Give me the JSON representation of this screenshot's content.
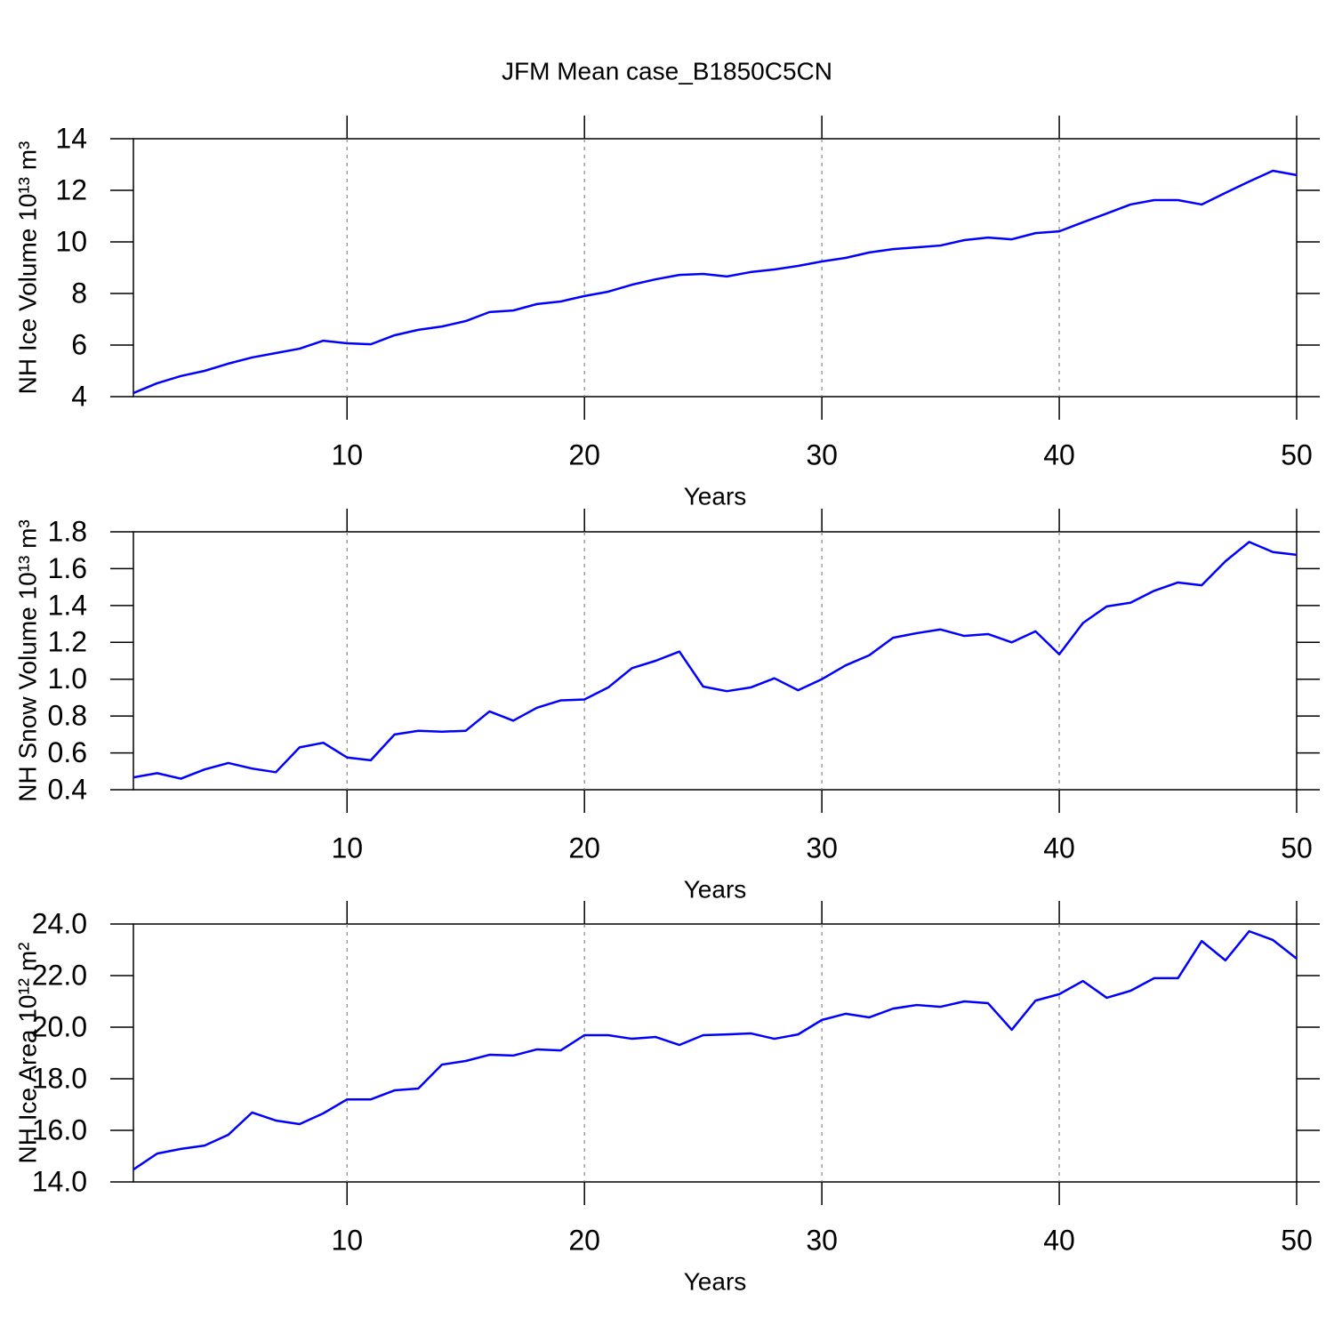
{
  "title": "JFM Mean case_B1850C5CN",
  "chart_data": [
    {
      "type": "line",
      "xlabel": "Years",
      "ylabel": "NH Ice Volume 10¹³ m³",
      "color": "#0000ff",
      "xgrid": true,
      "x": [
        1,
        2,
        3,
        4,
        5,
        6,
        7,
        8,
        9,
        10,
        11,
        12,
        13,
        14,
        15,
        16,
        17,
        18,
        19,
        20,
        21,
        22,
        23,
        24,
        25,
        26,
        27,
        28,
        29,
        30,
        31,
        32,
        33,
        34,
        35,
        36,
        37,
        38,
        39,
        40,
        41,
        42,
        43,
        44,
        45,
        46,
        47,
        48,
        49,
        50
      ],
      "values": [
        4.14,
        4.52,
        4.8,
        5.0,
        5.28,
        5.52,
        5.69,
        5.86,
        6.17,
        6.07,
        6.03,
        6.38,
        6.59,
        6.72,
        6.93,
        7.28,
        7.34,
        7.59,
        7.69,
        7.9,
        8.07,
        8.34,
        8.55,
        8.72,
        8.76,
        8.66,
        8.83,
        8.93,
        9.07,
        9.24,
        9.38,
        9.59,
        9.72,
        9.79,
        9.86,
        10.07,
        10.17,
        10.1,
        10.34,
        10.41,
        10.76,
        11.1,
        11.45,
        11.62,
        11.62,
        11.45,
        11.9,
        12.34,
        12.76,
        12.59
      ],
      "xlim": [
        1,
        50
      ],
      "xticks": [
        10,
        20,
        30,
        40,
        50
      ],
      "ylim": [
        4,
        14
      ],
      "yticks": [
        4,
        6,
        8,
        10,
        12,
        14
      ]
    },
    {
      "type": "line",
      "xlabel": "Years",
      "ylabel": "NH Snow Volume 10¹³ m³",
      "color": "#0000ff",
      "xgrid": true,
      "x": [
        1,
        2,
        3,
        4,
        5,
        6,
        7,
        8,
        9,
        10,
        11,
        12,
        13,
        14,
        15,
        16,
        17,
        18,
        19,
        20,
        21,
        22,
        23,
        24,
        25,
        26,
        27,
        28,
        29,
        30,
        31,
        32,
        33,
        34,
        35,
        36,
        37,
        38,
        39,
        40,
        41,
        42,
        43,
        44,
        45,
        46,
        47,
        48,
        49,
        50
      ],
      "values": [
        0.467,
        0.49,
        0.46,
        0.51,
        0.545,
        0.515,
        0.495,
        0.63,
        0.655,
        0.575,
        0.56,
        0.7,
        0.72,
        0.715,
        0.72,
        0.825,
        0.775,
        0.845,
        0.885,
        0.89,
        0.955,
        1.06,
        1.1,
        1.15,
        0.96,
        0.935,
        0.955,
        1.005,
        0.94,
        1.0,
        1.075,
        1.13,
        1.225,
        1.25,
        1.27,
        1.235,
        1.245,
        1.2,
        1.26,
        1.135,
        1.305,
        1.395,
        1.415,
        1.48,
        1.525,
        1.51,
        1.64,
        1.745,
        1.69,
        1.675
      ],
      "xlim": [
        1,
        50
      ],
      "xticks": [
        10,
        20,
        30,
        40,
        50
      ],
      "ylim": [
        0.4,
        1.8
      ],
      "yticks": [
        0.4,
        0.6,
        0.8,
        {
          "value": 1,
          "label": "1.0"
        },
        1.2,
        1.4,
        1.6,
        1.8
      ]
    },
    {
      "type": "line",
      "xlabel": "Years",
      "ylabel": "NH Ice Area 10¹² m²",
      "color": "#0000ff",
      "xgrid": true,
      "x": [
        1,
        2,
        3,
        4,
        5,
        6,
        7,
        8,
        9,
        10,
        11,
        12,
        13,
        14,
        15,
        16,
        17,
        18,
        19,
        20,
        21,
        22,
        23,
        24,
        25,
        26,
        27,
        28,
        29,
        30,
        31,
        32,
        33,
        34,
        35,
        36,
        37,
        38,
        39,
        40,
        41,
        42,
        43,
        44,
        45,
        46,
        47,
        48,
        49,
        50
      ],
      "values": [
        14.48,
        15.1,
        15.28,
        15.41,
        15.83,
        16.69,
        16.38,
        16.24,
        16.66,
        17.2,
        17.2,
        17.55,
        17.62,
        18.55,
        18.69,
        18.93,
        18.9,
        19.14,
        19.1,
        19.69,
        19.69,
        19.55,
        19.62,
        19.31,
        19.69,
        19.72,
        19.76,
        19.55,
        19.72,
        20.28,
        20.52,
        20.38,
        20.72,
        20.86,
        20.79,
        21.0,
        20.93,
        19.9,
        21.03,
        21.28,
        21.79,
        21.14,
        21.41,
        21.9,
        21.9,
        23.34,
        22.59,
        23.72,
        23.38,
        22.66
      ],
      "xlim": [
        1,
        50
      ],
      "xticks": [
        10,
        20,
        30,
        40,
        50
      ],
      "ylim": [
        14,
        24
      ],
      "yticks": [
        {
          "value": 14,
          "label": "14.0"
        },
        {
          "value": 16,
          "label": "16.0"
        },
        {
          "value": 18,
          "label": "18.0"
        },
        {
          "value": 20,
          "label": "20.0"
        },
        {
          "value": 22,
          "label": "22.0"
        },
        {
          "value": 24,
          "label": "24.0"
        }
      ]
    }
  ]
}
